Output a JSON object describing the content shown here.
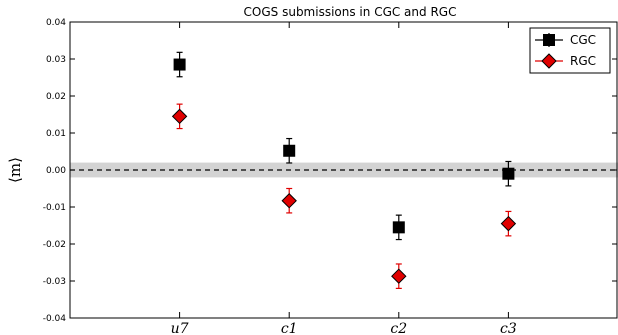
{
  "chart_data": {
    "type": "scatter",
    "title": "COGS submissions in CGC and RGC",
    "xlabel": "",
    "ylabel": "⟨m⟩",
    "categories": [
      "u7",
      "c1",
      "c2",
      "c3"
    ],
    "ylim": [
      -0.04,
      0.04
    ],
    "yticks": [
      "0.04",
      "0.03",
      "0.02",
      "0.01",
      "0.00",
      "-0.01",
      "-0.02",
      "-0.03",
      "-0.04"
    ],
    "grid": false,
    "legend_position": "top-right",
    "reference_line": 0.0,
    "reference_band": [
      -0.002,
      0.002
    ],
    "series": [
      {
        "name": "CGC",
        "marker": "square",
        "color": "#000000",
        "values": [
          0.0285,
          0.0052,
          -0.0155,
          -0.001
        ],
        "errors": [
          0.0033,
          0.0033,
          0.0033,
          0.0033
        ]
      },
      {
        "name": "RGC",
        "marker": "diamond",
        "color": "#e00000",
        "values": [
          0.0145,
          -0.0083,
          -0.0287,
          -0.0145
        ],
        "errors": [
          0.0033,
          0.0033,
          0.0033,
          0.0033
        ]
      }
    ]
  }
}
